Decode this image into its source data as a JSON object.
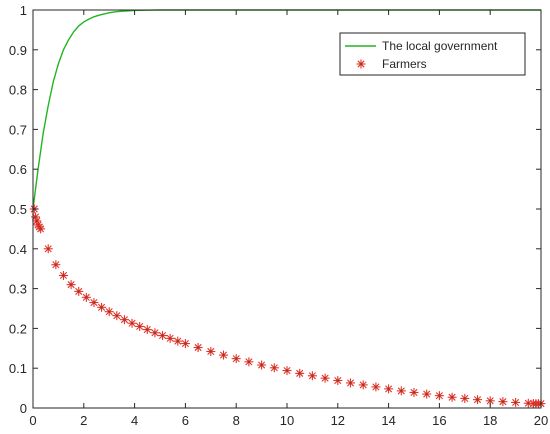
{
  "chart_data": {
    "type": "line",
    "xlim": [
      0,
      20
    ],
    "ylim": [
      0,
      1
    ],
    "x_ticks": [
      "0",
      "2",
      "4",
      "6",
      "8",
      "10",
      "12",
      "14",
      "16",
      "18",
      "20"
    ],
    "y_ticks": [
      "0",
      "0.1",
      "0.2",
      "0.3",
      "0.4",
      "0.5",
      "0.6",
      "0.7",
      "0.8",
      "0.9",
      "1"
    ],
    "grid": false,
    "legend_position": "top-right",
    "series": [
      {
        "name": "The local government",
        "style": "line",
        "color": "#22b522",
        "x": [
          0,
          0.2,
          0.4,
          0.6,
          0.8,
          1.0,
          1.2,
          1.4,
          1.6,
          1.8,
          2.0,
          2.2,
          2.4,
          2.6,
          2.8,
          3.0,
          3.2,
          3.5,
          3.8,
          4.0,
          4.5,
          5,
          6,
          8,
          10,
          12,
          14,
          16,
          18,
          20
        ],
        "y": [
          0.5,
          0.6,
          0.69,
          0.76,
          0.82,
          0.865,
          0.9,
          0.925,
          0.945,
          0.96,
          0.97,
          0.977,
          0.983,
          0.987,
          0.99,
          0.993,
          0.995,
          0.997,
          0.998,
          0.999,
          0.9995,
          1.0,
          1.0,
          1.0,
          1.0,
          1.0,
          1.0,
          1.0,
          1.0,
          1.0
        ]
      },
      {
        "name": "Farmers",
        "style": "markers",
        "marker": "asterisk",
        "color": "#e8312c",
        "x": [
          0.05,
          0.1,
          0.15,
          0.2,
          0.25,
          0.3,
          0.6,
          0.9,
          1.2,
          1.5,
          1.8,
          2.1,
          2.4,
          2.7,
          3.0,
          3.3,
          3.6,
          3.9,
          4.2,
          4.5,
          4.8,
          5.1,
          5.4,
          5.7,
          6.0,
          6.5,
          7.0,
          7.5,
          8.0,
          8.5,
          9.0,
          9.5,
          10.0,
          10.5,
          11.0,
          11.5,
          12.0,
          12.5,
          13.0,
          13.5,
          14.0,
          14.5,
          15.0,
          15.5,
          16.0,
          16.5,
          17.0,
          17.5,
          18.0,
          18.5,
          19.0,
          19.5,
          19.7,
          19.8,
          19.9,
          20.0
        ],
        "y": [
          0.5,
          0.48,
          0.47,
          0.46,
          0.455,
          0.45,
          0.4,
          0.36,
          0.333,
          0.31,
          0.293,
          0.278,
          0.265,
          0.253,
          0.242,
          0.232,
          0.222,
          0.213,
          0.205,
          0.197,
          0.189,
          0.182,
          0.175,
          0.168,
          0.162,
          0.152,
          0.142,
          0.133,
          0.124,
          0.116,
          0.108,
          0.101,
          0.094,
          0.087,
          0.081,
          0.075,
          0.069,
          0.063,
          0.058,
          0.053,
          0.048,
          0.043,
          0.039,
          0.035,
          0.031,
          0.027,
          0.024,
          0.021,
          0.018,
          0.016,
          0.014,
          0.012,
          0.011,
          0.011,
          0.011,
          0.011
        ]
      }
    ]
  }
}
